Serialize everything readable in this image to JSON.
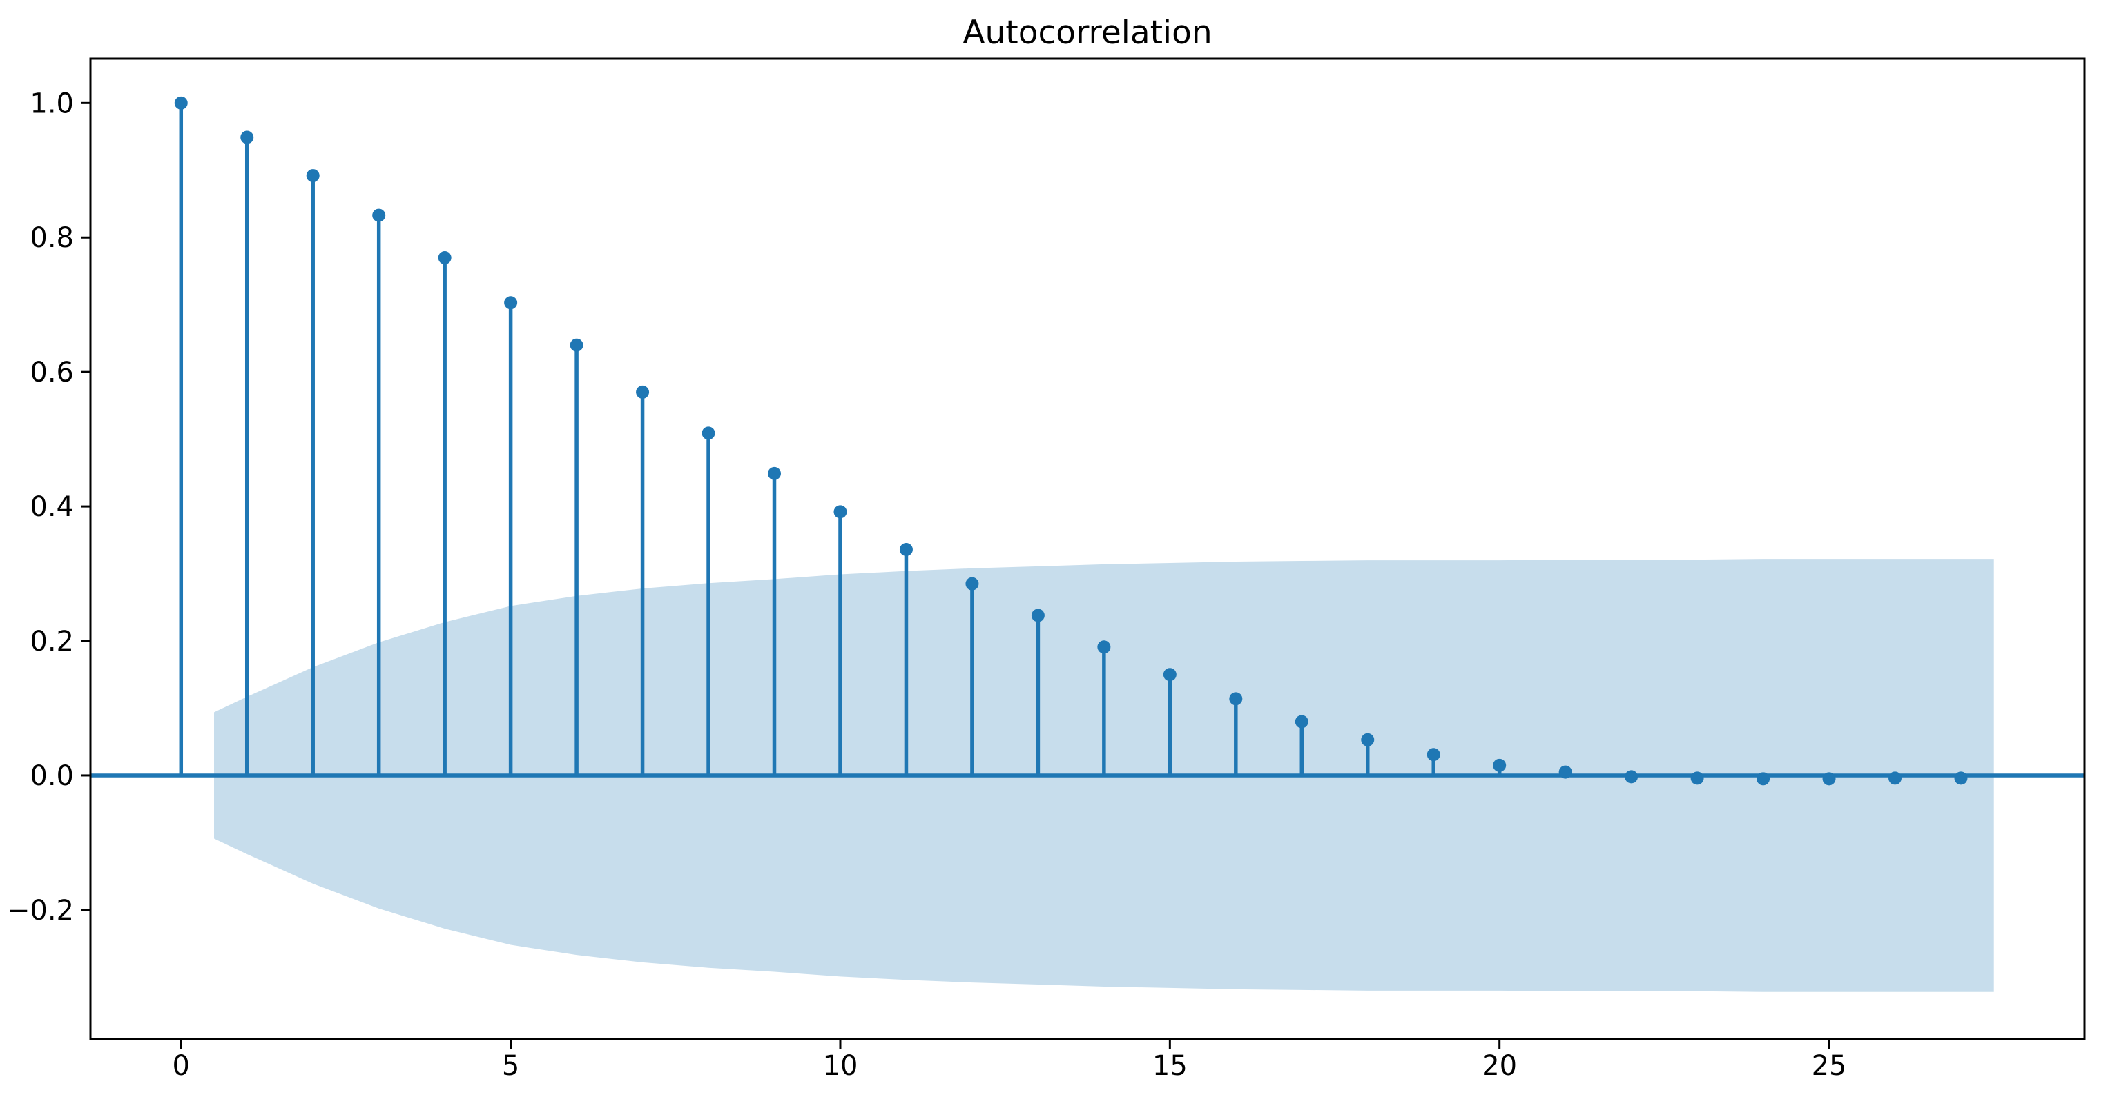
{
  "figure": {
    "title": "Autocorrelation",
    "background": "#ffffff"
  },
  "colors": {
    "primary": "#1f77b4",
    "confidence_band": "rgba(31,119,180,0.25)",
    "axis": "#000000",
    "text": "#000000"
  },
  "chart_data": {
    "type": "stem",
    "title": "Autocorrelation",
    "xlabel": "",
    "ylabel": "",
    "grid": false,
    "legend": null,
    "xlim": [
      -1.375,
      28.875
    ],
    "ylim": [
      -0.392,
      1.066
    ],
    "x_ticks": {
      "values": [
        0,
        5,
        10,
        15,
        20,
        25
      ],
      "labels": [
        "0",
        "5",
        "10",
        "15",
        "20",
        "25"
      ]
    },
    "y_ticks": {
      "values": [
        -0.2,
        0.0,
        0.2,
        0.4,
        0.6,
        0.8,
        1.0
      ],
      "labels": [
        "−0.2",
        "0.0",
        "0.2",
        "0.4",
        "0.6",
        "0.8",
        "1.0"
      ]
    },
    "lags": [
      0,
      1,
      2,
      3,
      4,
      5,
      6,
      7,
      8,
      9,
      10,
      11,
      12,
      13,
      14,
      15,
      16,
      17,
      18,
      19,
      20,
      21,
      22,
      23,
      24,
      25,
      26,
      27
    ],
    "acf": [
      1.0,
      0.949,
      0.892,
      0.833,
      0.77,
      0.703,
      0.64,
      0.57,
      0.509,
      0.449,
      0.392,
      0.336,
      0.285,
      0.238,
      0.191,
      0.15,
      0.114,
      0.08,
      0.053,
      0.031,
      0.015,
      0.005,
      -0.002,
      -0.004,
      -0.005,
      -0.005,
      -0.004,
      -0.004
    ],
    "baseline": 0.0,
    "confidence_band": {
      "x": [
        0.5,
        1,
        2,
        3,
        4,
        5,
        6,
        7,
        8,
        9,
        10,
        11,
        12,
        13,
        14,
        15,
        16,
        17,
        18,
        19,
        20,
        21,
        22,
        23,
        24,
        25,
        26,
        27,
        27.5
      ],
      "upper": [
        0.094,
        0.117,
        0.161,
        0.198,
        0.228,
        0.252,
        0.267,
        0.278,
        0.286,
        0.292,
        0.299,
        0.304,
        0.308,
        0.311,
        0.314,
        0.316,
        0.318,
        0.319,
        0.32,
        0.32,
        0.32,
        0.321,
        0.321,
        0.321,
        0.322,
        0.322,
        0.322,
        0.322,
        0.322
      ],
      "lower": [
        -0.094,
        -0.117,
        -0.161,
        -0.198,
        -0.228,
        -0.252,
        -0.267,
        -0.278,
        -0.286,
        -0.292,
        -0.299,
        -0.304,
        -0.308,
        -0.311,
        -0.314,
        -0.316,
        -0.318,
        -0.319,
        -0.32,
        -0.32,
        -0.32,
        -0.321,
        -0.321,
        -0.321,
        -0.322,
        -0.322,
        -0.322,
        -0.322,
        -0.322
      ]
    }
  }
}
